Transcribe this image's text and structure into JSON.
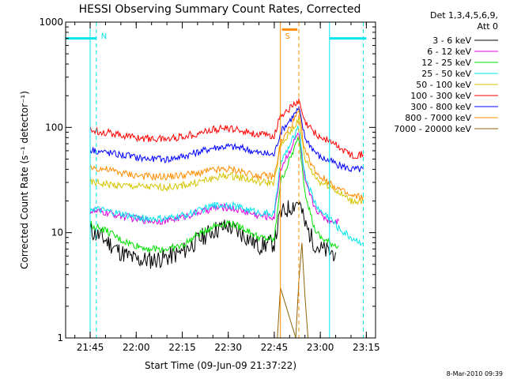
{
  "chart_data": {
    "type": "line",
    "title": "HESSI Observing Summary Count Rates, Corrected",
    "xlabel": "Start Time (09-Jun-09 21:37:22)",
    "ylabel": "Corrected Count Rate (s⁻¹ detector⁻¹)",
    "y_scale": "log",
    "ylim": [
      1,
      1000
    ],
    "yticks": [
      1,
      10,
      100,
      1000
    ],
    "ytick_labels": [
      "1",
      "10",
      "100",
      "1000"
    ],
    "xlim": [
      "21:37",
      "23:18"
    ],
    "xticks": [
      "21:45",
      "22:00",
      "22:15",
      "22:30",
      "22:45",
      "23:00",
      "23:15"
    ],
    "legend_header": [
      "Det 1,3,4,5,6,9,",
      "Att 0"
    ],
    "legend_position": "right",
    "annotations": [
      {
        "label": "N",
        "time": "21:47",
        "color": "#00e5ee"
      },
      {
        "label": "S",
        "time": "22:47",
        "color": "#ff8c00"
      }
    ],
    "night_periods": [
      {
        "start": "21:37",
        "end": "21:47",
        "level": 700
      },
      {
        "start": "23:03",
        "end": "23:15",
        "level": 700
      }
    ],
    "saa_period": {
      "start": "22:47",
      "end": "22:52",
      "level": 850
    },
    "markers": {
      "cyan_solid": [
        "21:45",
        "23:03"
      ],
      "cyan_dashed": [
        "21:47",
        "23:14"
      ],
      "orange_solid": [
        "22:47"
      ],
      "orange_dashed": [
        "22:53"
      ]
    },
    "footer": "8-Mar-2010 09:39",
    "series": [
      {
        "name": "3 - 6 keV",
        "color": "#000000",
        "x": [
          "21:45",
          "21:50",
          "21:55",
          "22:00",
          "22:05",
          "22:10",
          "22:15",
          "22:20",
          "22:25",
          "22:30",
          "22:35",
          "22:40",
          "22:45",
          "22:47",
          "22:53",
          "22:55",
          "22:58",
          "23:00",
          "23:03",
          "23:05"
        ],
        "y": [
          10.5,
          8.5,
          6.5,
          5.5,
          5.5,
          5.8,
          6.5,
          8.5,
          10.5,
          11.5,
          9.5,
          7.5,
          8,
          15,
          20,
          12,
          8,
          7,
          6.5,
          6.5
        ]
      },
      {
        "name": "6 - 12 keV",
        "color": "#e000e0",
        "x": [
          "21:45",
          "21:50",
          "21:55",
          "22:00",
          "22:05",
          "22:10",
          "22:15",
          "22:20",
          "22:25",
          "22:30",
          "22:35",
          "22:40",
          "22:45",
          "22:47",
          "22:53",
          "22:55",
          "22:58",
          "23:00",
          "23:03",
          "23:06"
        ],
        "y": [
          16,
          15.5,
          14.5,
          13.5,
          13,
          13,
          14,
          15.5,
          17,
          17.5,
          16,
          14.5,
          14,
          40,
          90,
          30,
          18,
          15,
          13,
          13
        ]
      },
      {
        "name": "12 - 25 keV",
        "color": "#00e000",
        "x": [
          "21:45",
          "21:50",
          "21:55",
          "22:00",
          "22:05",
          "22:10",
          "22:15",
          "22:20",
          "22:25",
          "22:30",
          "22:35",
          "22:40",
          "22:45",
          "22:47",
          "22:53",
          "22:55",
          "22:58",
          "23:00",
          "23:03",
          "23:06"
        ],
        "y": [
          12,
          10.5,
          8.5,
          7.5,
          7,
          7,
          7.5,
          9.5,
          11.5,
          12.5,
          11,
          9,
          8.5,
          30,
          80,
          25,
          11,
          9,
          8,
          7.5
        ]
      },
      {
        "name": "25 - 50 keV",
        "color": "#00e5ee",
        "x": [
          "21:45",
          "21:50",
          "21:55",
          "22:00",
          "22:05",
          "22:10",
          "22:15",
          "22:20",
          "22:25",
          "22:30",
          "22:35",
          "22:40",
          "22:45",
          "22:47",
          "22:53",
          "22:55",
          "22:58",
          "23:00",
          "23:03",
          "23:06",
          "23:10",
          "23:14"
        ],
        "y": [
          17,
          16,
          15,
          14,
          13.5,
          13.5,
          14.5,
          16,
          18,
          18.5,
          17,
          15.5,
          15,
          45,
          100,
          35,
          20,
          16,
          14,
          11,
          9,
          8
        ]
      },
      {
        "name": "50 - 100 keV",
        "color": "#d4c400",
        "x": [
          "21:45",
          "21:50",
          "21:55",
          "22:00",
          "22:05",
          "22:10",
          "22:15",
          "22:20",
          "22:25",
          "22:30",
          "22:35",
          "22:40",
          "22:45",
          "22:47",
          "22:53",
          "22:55",
          "22:58",
          "23:00",
          "23:03",
          "23:06",
          "23:10",
          "23:14"
        ],
        "y": [
          30,
          29,
          28,
          27.5,
          27,
          27,
          28,
          30,
          33,
          35,
          33,
          30,
          30,
          65,
          120,
          50,
          35,
          30,
          28,
          24,
          20,
          20
        ]
      },
      {
        "name": "100 - 300 keV",
        "color": "#ff0000",
        "x": [
          "21:45",
          "21:50",
          "21:55",
          "22:00",
          "22:05",
          "22:10",
          "22:15",
          "22:20",
          "22:25",
          "22:30",
          "22:35",
          "22:40",
          "22:45",
          "22:47",
          "22:53",
          "22:55",
          "22:58",
          "23:00",
          "23:03",
          "23:06",
          "23:10",
          "23:14"
        ],
        "y": [
          95,
          90,
          85,
          80,
          78,
          78,
          82,
          88,
          95,
          98,
          93,
          85,
          83,
          130,
          175,
          110,
          90,
          80,
          75,
          65,
          55,
          55
        ]
      },
      {
        "name": "300 - 800 keV",
        "color": "#0000ff",
        "x": [
          "21:45",
          "21:50",
          "21:55",
          "22:00",
          "22:05",
          "22:10",
          "22:15",
          "22:20",
          "22:25",
          "22:30",
          "22:35",
          "22:40",
          "22:45",
          "22:47",
          "22:53",
          "22:55",
          "22:58",
          "23:00",
          "23:03",
          "23:06",
          "23:10",
          "23:14"
        ],
        "y": [
          62,
          58,
          55,
          52,
          50,
          50,
          53,
          58,
          64,
          66,
          63,
          57,
          55,
          90,
          150,
          80,
          60,
          52,
          48,
          44,
          40,
          40
        ]
      },
      {
        "name": "800 - 7000 keV",
        "color": "#ff8c00",
        "x": [
          "21:45",
          "21:50",
          "21:55",
          "22:00",
          "22:05",
          "22:10",
          "22:15",
          "22:20",
          "22:25",
          "22:30",
          "22:35",
          "22:40",
          "22:45",
          "22:47",
          "22:53",
          "22:55",
          "22:58",
          "23:00",
          "23:03",
          "23:06",
          "23:10",
          "23:14"
        ],
        "y": [
          42,
          40,
          37,
          35,
          34,
          34,
          35,
          37,
          39,
          40,
          38,
          35,
          34,
          70,
          140,
          60,
          40,
          34,
          30,
          26,
          22,
          22
        ]
      },
      {
        "name": "7000 - 20000 keV",
        "color": "#8b6508",
        "x": [
          "22:46",
          "22:47",
          "22:52",
          "22:53",
          "22:54",
          "22:55",
          "22:56"
        ],
        "y": [
          1,
          3,
          1,
          3.5,
          8,
          2.5,
          1
        ]
      }
    ]
  }
}
